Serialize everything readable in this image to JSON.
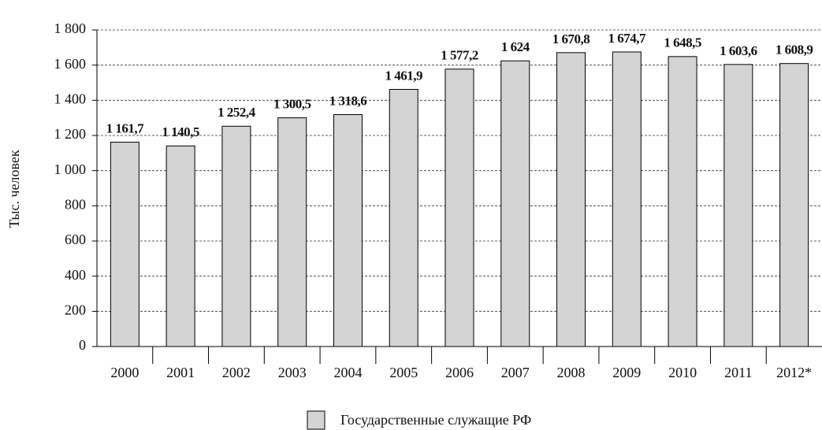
{
  "chart_data": {
    "type": "bar",
    "y_label": "Тыс. человек",
    "categories": [
      "2000",
      "2001",
      "2002",
      "2003",
      "2004",
      "2005",
      "2006",
      "2007",
      "2008",
      "2009",
      "2010",
      "2011",
      "2012*"
    ],
    "series": [
      {
        "name": "Государственные служащие РФ",
        "color": "#d4d4d4",
        "values": [
          1161.7,
          1140.5,
          1252.4,
          1300.5,
          1318.6,
          1461.9,
          1577.2,
          1624,
          1670.8,
          1674.7,
          1648.5,
          1603.6,
          1608.9
        ],
        "value_labels": [
          "1 161,7",
          "1 140,5",
          "1 252,4",
          "1 300,5",
          "1 318,6",
          "1 461,9",
          "1 577,2",
          "1 624",
          "1 670,8",
          "1 674,7",
          "1 648,5",
          "1 603,6",
          "1 608,9"
        ]
      }
    ],
    "ylim": [
      0,
      1800
    ],
    "yticks": [
      0,
      200,
      400,
      600,
      800,
      {
        "value": 1000,
        "label": "1 000"
      },
      {
        "value": 1200,
        "label": "1 200"
      },
      {
        "value": 1400,
        "label": "1 400"
      },
      {
        "value": 1600,
        "label": "1 600"
      },
      {
        "value": 1800,
        "label": "1 800"
      }
    ],
    "grid": true,
    "legend": "bottom"
  }
}
